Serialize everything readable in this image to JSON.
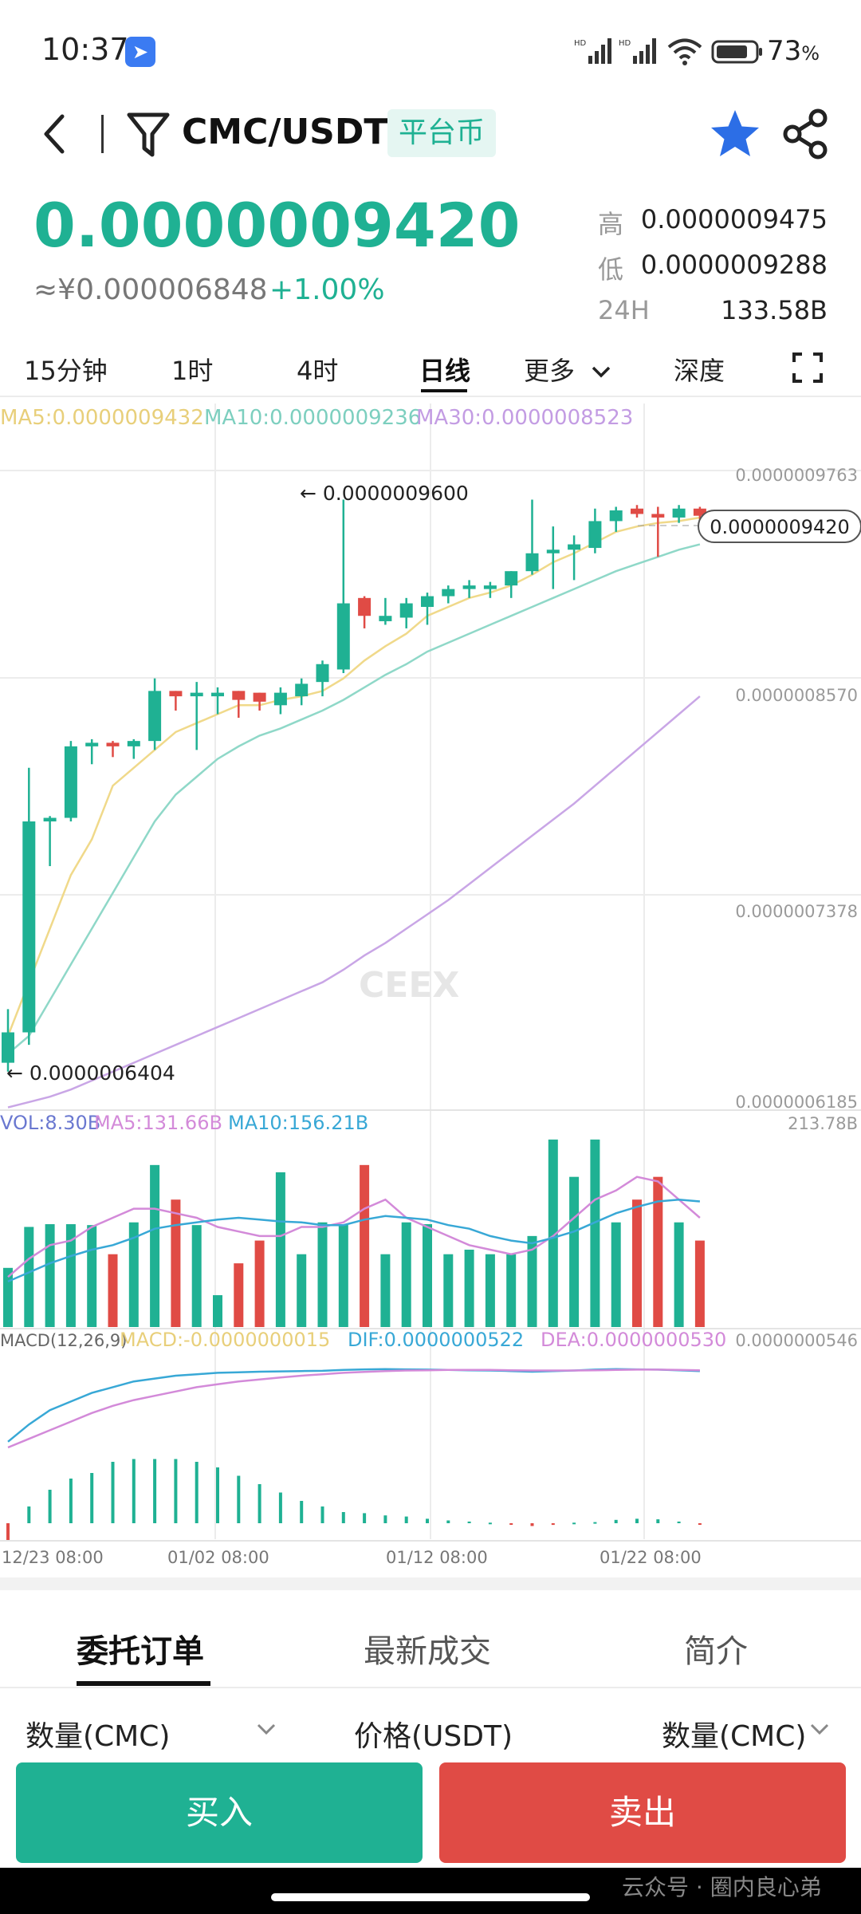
{
  "status_bar": {
    "time": "10:37",
    "battery": "73",
    "battery_unit": "%",
    "icons": [
      "app-badge-icon",
      "signal-hd-icon",
      "signal-hd-icon",
      "wifi-icon",
      "battery-icon"
    ]
  },
  "header": {
    "pair": "CMC/USDT",
    "tag": "平台币",
    "icons": [
      "back-icon",
      "filter-icon",
      "star-icon",
      "share-icon"
    ],
    "star_color": "#2c6ee6"
  },
  "price": {
    "last": "0.0000009420",
    "cny": "≈¥0.000006848",
    "change": "+1.00%",
    "stats": [
      {
        "label": "高",
        "value": "0.0000009475"
      },
      {
        "label": "低",
        "value": "0.0000009288"
      },
      {
        "label": "24H",
        "value": "133.58B"
      }
    ]
  },
  "tabs": {
    "items": [
      "15分钟",
      "1时",
      "4时",
      "日线",
      "更多",
      "深度"
    ],
    "active": "日线",
    "fullscreen_icon": "expand-icon"
  },
  "colors": {
    "up": "#1fb193",
    "down": "#e04b45",
    "ma5": "#f0d98a",
    "ma10": "#8fd8c8",
    "ma30": "#c9a6e6"
  },
  "chart_data": {
    "type": "candlestick",
    "ma_legend": {
      "ma5": "MA5:0.0000009432",
      "ma10": "MA10:0.0000009236",
      "ma30": "MA30:0.0000008523"
    },
    "y_ticks": [
      "0.0000009763",
      "0.0000008570",
      "0.0000007378",
      "0.0000006185"
    ],
    "ylim": [
      6.185e-07,
      9.763e-07
    ],
    "annotations": {
      "high": "← 0.0000009600",
      "low": "← 0.0000006404",
      "last": "0.0000009420"
    },
    "watermark": "CEEX",
    "x_ticks": [
      "12/23 08:00",
      "01/02 08:00",
      "01/12 08:00",
      "01/22 08:00"
    ],
    "candles": [
      {
        "o": 6.45,
        "h": 6.75,
        "l": 6.4,
        "c": 6.62
      },
      {
        "o": 6.62,
        "h": 8.1,
        "l": 6.55,
        "c": 7.8
      },
      {
        "o": 7.8,
        "h": 7.83,
        "l": 7.55,
        "c": 7.82
      },
      {
        "o": 7.82,
        "h": 8.25,
        "l": 7.8,
        "c": 8.22
      },
      {
        "o": 8.22,
        "h": 8.26,
        "l": 8.12,
        "c": 8.24
      },
      {
        "o": 8.24,
        "h": 8.25,
        "l": 8.16,
        "c": 8.22
      },
      {
        "o": 8.22,
        "h": 8.26,
        "l": 8.15,
        "c": 8.25
      },
      {
        "o": 8.25,
        "h": 8.6,
        "l": 8.2,
        "c": 8.53
      },
      {
        "o": 8.53,
        "h": 8.53,
        "l": 8.42,
        "c": 8.5
      },
      {
        "o": 8.5,
        "h": 8.58,
        "l": 8.2,
        "c": 8.52
      },
      {
        "o": 8.5,
        "h": 8.55,
        "l": 8.4,
        "c": 8.52
      },
      {
        "o": 8.53,
        "h": 8.53,
        "l": 8.38,
        "c": 8.48
      },
      {
        "o": 8.52,
        "h": 8.52,
        "l": 8.42,
        "c": 8.47
      },
      {
        "o": 8.45,
        "h": 8.55,
        "l": 8.4,
        "c": 8.52
      },
      {
        "o": 8.5,
        "h": 8.6,
        "l": 8.45,
        "c": 8.57
      },
      {
        "o": 8.58,
        "h": 8.7,
        "l": 8.5,
        "c": 8.68
      },
      {
        "o": 8.65,
        "h": 9.6,
        "l": 8.63,
        "c": 9.02
      },
      {
        "o": 9.05,
        "h": 9.06,
        "l": 8.88,
        "c": 8.95
      },
      {
        "o": 8.92,
        "h": 9.05,
        "l": 8.9,
        "c": 8.95
      },
      {
        "o": 8.94,
        "h": 9.05,
        "l": 8.88,
        "c": 9.02
      },
      {
        "o": 9.0,
        "h": 9.08,
        "l": 8.9,
        "c": 9.06
      },
      {
        "o": 9.06,
        "h": 9.12,
        "l": 9.02,
        "c": 9.1
      },
      {
        "o": 9.1,
        "h": 9.15,
        "l": 9.05,
        "c": 9.12
      },
      {
        "o": 9.1,
        "h": 9.14,
        "l": 9.05,
        "c": 9.12
      },
      {
        "o": 9.12,
        "h": 9.2,
        "l": 9.05,
        "c": 9.2
      },
      {
        "o": 9.2,
        "h": 9.6,
        "l": 9.18,
        "c": 9.3
      },
      {
        "o": 9.3,
        "h": 9.45,
        "l": 9.1,
        "c": 9.32
      },
      {
        "o": 9.32,
        "h": 9.4,
        "l": 9.15,
        "c": 9.35
      },
      {
        "o": 9.33,
        "h": 9.55,
        "l": 9.3,
        "c": 9.48
      },
      {
        "o": 9.48,
        "h": 9.56,
        "l": 9.42,
        "c": 9.54
      },
      {
        "o": 9.55,
        "h": 9.57,
        "l": 9.5,
        "c": 9.52
      },
      {
        "o": 9.52,
        "h": 9.56,
        "l": 9.28,
        "c": 9.5
      },
      {
        "o": 9.5,
        "h": 9.57,
        "l": 9.47,
        "c": 9.55
      },
      {
        "o": 9.55,
        "h": 9.56,
        "l": 9.49,
        "c": 9.51
      }
    ],
    "ma5": [
      6.6,
      6.9,
      7.2,
      7.5,
      7.7,
      8.0,
      8.1,
      8.2,
      8.3,
      8.35,
      8.4,
      8.45,
      8.45,
      8.48,
      8.5,
      8.53,
      8.6,
      8.7,
      8.78,
      8.85,
      8.95,
      9.0,
      9.05,
      9.08,
      9.12,
      9.18,
      9.25,
      9.3,
      9.36,
      9.42,
      9.45,
      9.47,
      9.48,
      9.5
    ],
    "ma10": [
      6.5,
      6.6,
      6.8,
      7.0,
      7.2,
      7.4,
      7.6,
      7.8,
      7.95,
      8.05,
      8.15,
      8.22,
      8.28,
      8.32,
      8.37,
      8.42,
      8.48,
      8.55,
      8.62,
      8.68,
      8.75,
      8.8,
      8.85,
      8.9,
      8.95,
      9.0,
      9.05,
      9.1,
      9.15,
      9.2,
      9.24,
      9.28,
      9.32,
      9.35
    ],
    "ma30": [
      6.2,
      6.23,
      6.26,
      6.3,
      6.35,
      6.4,
      6.45,
      6.5,
      6.55,
      6.6,
      6.65,
      6.7,
      6.75,
      6.8,
      6.85,
      6.9,
      6.97,
      7.05,
      7.12,
      7.2,
      7.28,
      7.36,
      7.45,
      7.54,
      7.63,
      7.72,
      7.81,
      7.9,
      8.0,
      8.1,
      8.2,
      8.3,
      8.4,
      8.5
    ],
    "volume": {
      "legend_vol": "VOL:8.30B",
      "legend_ma5": "MA5:131.66B",
      "legend_ma10": "MA10:156.21B",
      "top_tick": "213.78B",
      "values": [
        65,
        110,
        113,
        113,
        112,
        80,
        115,
        178,
        140,
        112,
        35,
        70,
        95,
        170,
        80,
        115,
        113,
        178,
        80,
        115,
        113,
        80,
        85,
        80,
        80,
        100,
        206,
        165,
        206,
        115,
        140,
        165,
        115,
        95
      ],
      "ma5": [
        55,
        75,
        90,
        95,
        110,
        120,
        130,
        130,
        125,
        120,
        110,
        105,
        100,
        100,
        110,
        110,
        115,
        130,
        140,
        120,
        110,
        100,
        90,
        85,
        80,
        85,
        100,
        120,
        140,
        150,
        165,
        160,
        140,
        120
      ],
      "ma10": [
        50,
        60,
        70,
        78,
        85,
        90,
        98,
        108,
        112,
        115,
        118,
        120,
        118,
        116,
        115,
        112,
        112,
        118,
        122,
        120,
        118,
        112,
        108,
        100,
        95,
        92,
        98,
        105,
        115,
        125,
        132,
        138,
        140,
        138
      ]
    },
    "macd": {
      "legend_title": "MACD(12,26,9)",
      "legend_macd": "MACD:-0.0000000015",
      "legend_dif": "DIF:0.0000000522",
      "legend_dea": "DEA:0.0000000530",
      "top_tick": "0.0000000546",
      "hist": [
        -0.3,
        0.3,
        0.6,
        0.8,
        0.9,
        1.1,
        1.15,
        1.15,
        1.15,
        1.1,
        1.0,
        0.85,
        0.7,
        0.55,
        0.4,
        0.3,
        0.2,
        0.18,
        0.14,
        0.12,
        0.08,
        0.05,
        0.03,
        0.01,
        -0.02,
        -0.05,
        -0.03,
        0.01,
        0.02,
        0.06,
        0.08,
        0.07,
        0.03,
        -0.02
      ],
      "dif": [
        0.2,
        0.8,
        1.3,
        1.6,
        1.9,
        2.1,
        2.3,
        2.4,
        2.5,
        2.55,
        2.6,
        2.62,
        2.64,
        2.65,
        2.66,
        2.67,
        2.7,
        2.72,
        2.73,
        2.72,
        2.71,
        2.7,
        2.69,
        2.68,
        2.66,
        2.64,
        2.66,
        2.68,
        2.71,
        2.73,
        2.72,
        2.71,
        2.69,
        2.66
      ],
      "dea": [
        0.0,
        0.3,
        0.6,
        0.9,
        1.2,
        1.45,
        1.65,
        1.8,
        1.95,
        2.1,
        2.2,
        2.3,
        2.37,
        2.44,
        2.5,
        2.55,
        2.6,
        2.63,
        2.66,
        2.68,
        2.69,
        2.7,
        2.7,
        2.7,
        2.69,
        2.68,
        2.68,
        2.68,
        2.69,
        2.7,
        2.71,
        2.71,
        2.7,
        2.69
      ]
    }
  },
  "bottom_tabs": {
    "items": [
      "委托订单",
      "最新成交",
      "简介"
    ],
    "active": "委托订单"
  },
  "order_columns": [
    "数量(CMC)",
    "价格(USDT)",
    "数量(CMC)"
  ],
  "actions": {
    "buy": "买入",
    "sell": "卖出"
  },
  "watermark": "云众号 · 圈内良心弟"
}
